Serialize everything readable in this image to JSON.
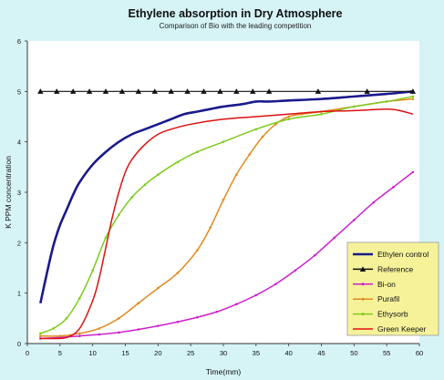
{
  "chart_data": {
    "type": "line",
    "title": "Ethylene absorption in Dry Atmosphere",
    "subtitle": "Comparison of Bio with the leading competition",
    "xlabel": "Time(mm)",
    "ylabel": "K PPM concentration",
    "xlim": [
      0,
      60
    ],
    "ylim": [
      0,
      6
    ],
    "x_ticks": [
      0,
      5,
      10,
      15,
      20,
      25,
      30,
      35,
      40,
      45,
      50,
      55,
      60
    ],
    "y_ticks": [
      0,
      1,
      2,
      3,
      4,
      5,
      6
    ],
    "grid": false,
    "legend_position": "bottom-right",
    "series": [
      {
        "name": "Ethylen control",
        "color": "#1a1a8c",
        "marker": "none",
        "x": [
          2,
          3,
          4,
          5,
          6,
          7,
          8,
          10,
          12,
          14,
          16,
          18,
          20,
          22,
          24,
          26,
          28,
          30,
          33,
          35,
          37,
          40,
          45,
          50,
          55,
          59
        ],
        "y": [
          0.8,
          1.4,
          1.95,
          2.35,
          2.65,
          2.95,
          3.2,
          3.55,
          3.8,
          4.0,
          4.15,
          4.25,
          4.35,
          4.45,
          4.55,
          4.6,
          4.65,
          4.7,
          4.75,
          4.8,
          4.8,
          4.82,
          4.85,
          4.9,
          4.95,
          5.0
        ]
      },
      {
        "name": "Reference",
        "color": "#111111",
        "marker": "triangle",
        "x": [
          2,
          4.5,
          7,
          9.5,
          12,
          14.5,
          17,
          19.5,
          22,
          24.5,
          27,
          29.5,
          32,
          34.5,
          37,
          44.5,
          52,
          59
        ],
        "y": [
          5.0,
          5.0,
          5.0,
          5.0,
          5.0,
          5.0,
          5.0,
          5.0,
          5.0,
          5.0,
          5.0,
          5.0,
          5.0,
          5.0,
          5.0,
          5.0,
          5.0,
          5.0
        ]
      },
      {
        "name": "Bi-on",
        "color": "#cc22cc",
        "marker": "dot",
        "x": [
          2,
          5,
          8,
          11,
          14,
          17,
          20,
          23,
          26,
          29,
          32,
          35,
          38,
          41,
          44,
          47,
          50,
          53,
          56,
          59
        ],
        "y": [
          0.1,
          0.12,
          0.15,
          0.18,
          0.22,
          0.28,
          0.35,
          0.43,
          0.52,
          0.63,
          0.78,
          0.96,
          1.18,
          1.45,
          1.75,
          2.1,
          2.45,
          2.8,
          3.1,
          3.4
        ]
      },
      {
        "name": "Purafil",
        "color": "#e08a1e",
        "marker": "dot",
        "x": [
          2,
          5,
          8,
          11,
          14,
          17,
          20,
          23,
          26,
          28,
          30,
          32,
          34,
          36,
          38,
          40,
          42,
          45,
          50,
          55,
          59
        ],
        "y": [
          0.15,
          0.15,
          0.2,
          0.3,
          0.5,
          0.8,
          1.1,
          1.4,
          1.85,
          2.3,
          2.85,
          3.35,
          3.75,
          4.1,
          4.35,
          4.5,
          4.55,
          4.6,
          4.7,
          4.8,
          4.85
        ]
      },
      {
        "name": "Ethysorb",
        "color": "#7ecb1d",
        "marker": "dot",
        "x": [
          2,
          4,
          6,
          8,
          10,
          12,
          14,
          16,
          18,
          20,
          23,
          26,
          30,
          35,
          40,
          45,
          50,
          55,
          59
        ],
        "y": [
          0.2,
          0.3,
          0.5,
          0.9,
          1.45,
          2.1,
          2.55,
          2.9,
          3.15,
          3.35,
          3.6,
          3.8,
          4.0,
          4.25,
          4.45,
          4.55,
          4.7,
          4.8,
          4.9
        ]
      },
      {
        "name": "Green Keeper",
        "color": "#dd1111",
        "marker": "none",
        "x": [
          2,
          4,
          6,
          8,
          10,
          11,
          12,
          13,
          14,
          15,
          16,
          18,
          20,
          22,
          25,
          30,
          35,
          40,
          45,
          50,
          55,
          57,
          59
        ],
        "y": [
          0.1,
          0.1,
          0.12,
          0.3,
          0.85,
          1.3,
          1.9,
          2.5,
          3.0,
          3.4,
          3.65,
          3.95,
          4.15,
          4.25,
          4.35,
          4.45,
          4.5,
          4.55,
          4.6,
          4.62,
          4.65,
          4.62,
          4.55
        ]
      }
    ],
    "legend_bg": "#f6f29a"
  }
}
